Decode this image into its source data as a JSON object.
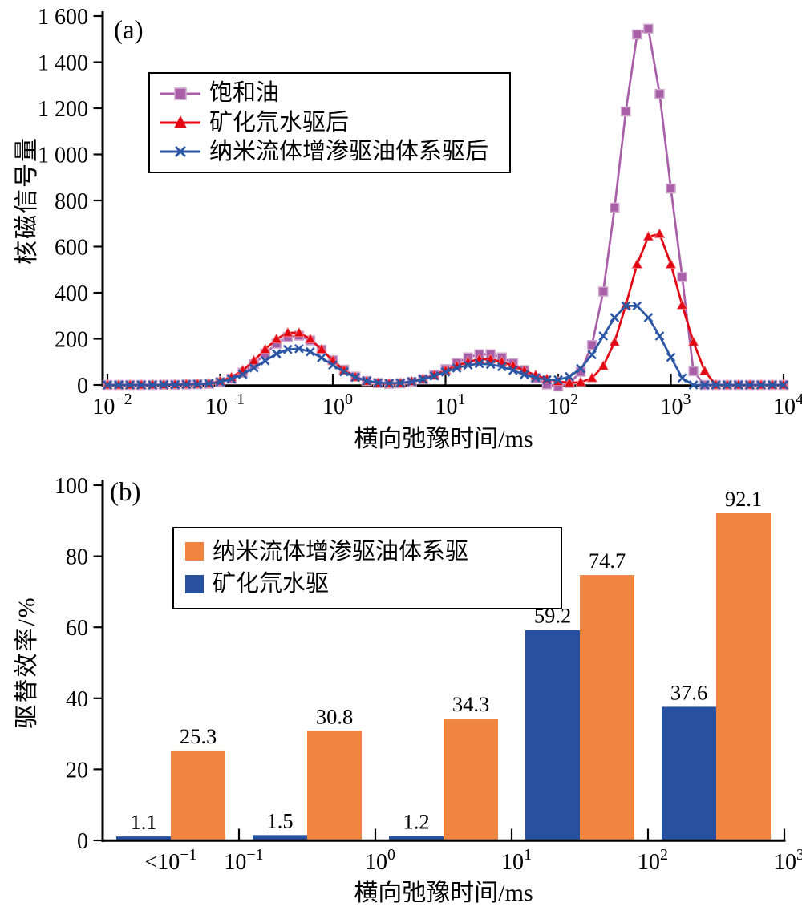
{
  "figure": {
    "background": "#ffffff",
    "axis_color": "#000000"
  },
  "chart_data": [
    {
      "type": "line",
      "panel_label": "(a)",
      "xlabel": "横向弛豫时间/ms",
      "ylabel": "核磁信号量",
      "x_scale": "log",
      "x_range_log10": [
        -2,
        4
      ],
      "ylim": [
        0,
        1600
      ],
      "grid": false,
      "legend_position": "upper-left",
      "x_ticks": [
        {
          "base": "10",
          "exp": "−2"
        },
        {
          "base": "10",
          "exp": "−1"
        },
        {
          "base": "10",
          "exp": "0"
        },
        {
          "base": "10",
          "exp": "1"
        },
        {
          "base": "10",
          "exp": "2"
        },
        {
          "base": "10",
          "exp": "3"
        },
        {
          "base": "10",
          "exp": "4"
        }
      ],
      "y_ticks": [
        {
          "v": 0,
          "label": "0"
        },
        {
          "v": 200,
          "label": "200"
        },
        {
          "v": 400,
          "label": "400"
        },
        {
          "v": 600,
          "label": "600"
        },
        {
          "v": 800,
          "label": "800"
        },
        {
          "v": 1000,
          "label": "1 000"
        },
        {
          "v": 1200,
          "label": "1 200"
        },
        {
          "v": 1400,
          "label": "1 400"
        },
        {
          "v": 1600,
          "label": "1 600"
        }
      ],
      "logx_start": -2,
      "logx_step": 0.1,
      "series": [
        {
          "name": "饱和油",
          "marker": "square",
          "color": "#a85fa7",
          "edge": "#cfa6ce",
          "values": [
            0,
            0,
            0,
            0,
            0,
            1,
            1,
            2,
            3,
            5,
            12,
            27,
            53,
            90,
            135,
            179,
            208,
            214,
            193,
            153,
            107,
            66,
            36,
            17,
            8,
            5,
            7,
            13,
            25,
            44,
            68,
            95,
            119,
            133,
            133,
            119,
            94,
            64,
            29,
            2,
            -7,
            8,
            57,
            173,
            405,
            769,
            1186,
            1520,
            1545,
            1262,
            852,
            468,
            60,
            0,
            0,
            0,
            0,
            0,
            0,
            0,
            0
          ]
        },
        {
          "name": "矿化氘水驱后",
          "marker": "triangle",
          "color": "#e30613",
          "edge": "#f2868b",
          "values": [
            0,
            0,
            0,
            0,
            1,
            1,
            2,
            3,
            4,
            6,
            16,
            33,
            63,
            105,
            154,
            199,
            226,
            226,
            199,
            154,
            105,
            63,
            34,
            16,
            8,
            6,
            8,
            15,
            26,
            42,
            62,
            83,
            100,
            111,
            111,
            100,
            83,
            62,
            42,
            26,
            15,
            9,
            12,
            30,
            82,
            186,
            346,
            523,
            643,
            655,
            523,
            346,
            186,
            60,
            0,
            0,
            0,
            0,
            0,
            0,
            0
          ]
        },
        {
          "name": "纳米流体增渗驱油体系驱后",
          "marker": "x",
          "color": "#2c57a5",
          "edge": "#2c57a5",
          "values": [
            0,
            0,
            0,
            0,
            0,
            1,
            1,
            2,
            3,
            6,
            13,
            26,
            46,
            74,
            105,
            135,
            154,
            157,
            144,
            118,
            86,
            57,
            33,
            18,
            10,
            7,
            9,
            14,
            25,
            39,
            56,
            73,
            86,
            92,
            89,
            79,
            63,
            45,
            31,
            22,
            22,
            36,
            71,
            131,
            212,
            292,
            343,
            343,
            292,
            212,
            120,
            30,
            0,
            0,
            0,
            0,
            0,
            0,
            0,
            0,
            0
          ]
        }
      ]
    },
    {
      "type": "bar",
      "panel_label": "(b)",
      "xlabel": "横向弛豫时间/ms",
      "ylabel": "驱替效率/%",
      "ylim": [
        0,
        100
      ],
      "grid": false,
      "legend_position": "upper-left",
      "value_labels_shown": true,
      "y_ticks": [
        {
          "v": 0,
          "label": "0"
        },
        {
          "v": 20,
          "label": "20"
        },
        {
          "v": 40,
          "label": "40"
        },
        {
          "v": 60,
          "label": "60"
        },
        {
          "v": 80,
          "label": "80"
        },
        {
          "v": 100,
          "label": "100"
        }
      ],
      "x_ticks": [
        {
          "pre": "<",
          "base": "10",
          "exp": "−1",
          "tick": false
        },
        {
          "base": "10",
          "exp": "−1",
          "tick": true
        },
        {
          "base": "10",
          "exp": "0",
          "tick": true
        },
        {
          "base": "10",
          "exp": "1",
          "tick": true
        },
        {
          "base": "10",
          "exp": "2",
          "tick": true
        },
        {
          "base": "10",
          "exp": "3",
          "tick": true
        }
      ],
      "categories": [
        "<10⁻¹",
        "10⁻¹–10⁰",
        "10⁰–10¹",
        "10¹–10²",
        "10²–10³"
      ],
      "series": [
        {
          "name": "矿化氘水驱",
          "color": "#27509e",
          "values": [
            1.1,
            1.5,
            1.2,
            59.2,
            37.6
          ]
        },
        {
          "name": "纳米流体增渗驱油体系驱",
          "color": "#ef8540",
          "values": [
            25.3,
            30.8,
            34.3,
            74.7,
            92.1
          ]
        }
      ]
    }
  ]
}
